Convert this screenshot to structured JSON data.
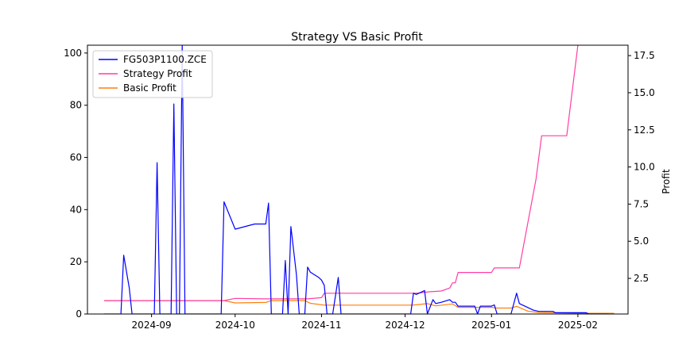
{
  "chart_data": {
    "type": "line",
    "title": "Strategy VS Basic Profit",
    "xlabel": "",
    "ylabel_left": "",
    "ylabel_right": "Profit",
    "x_ticks": [
      "2024-09",
      "2024-10",
      "2024-11",
      "2024-12",
      "2025-01",
      "2025-02"
    ],
    "x_range": [
      "2024-08-09",
      "2025-02-19"
    ],
    "y_left_ticks": [
      0,
      20,
      40,
      60,
      80,
      100
    ],
    "y_left_range": [
      0,
      103
    ],
    "y_right_ticks": [
      2.5,
      5.0,
      7.5,
      10.0,
      12.5,
      15.0,
      17.5
    ],
    "y_right_tick_labels": [
      "2.5",
      "5.0",
      "7.5",
      "10.0",
      "12.5",
      "15.0",
      "17.5"
    ],
    "y_right_range": [
      0.1,
      18.2
    ],
    "legend_position": "upper-left",
    "grid": false,
    "series": [
      {
        "name": "FG503P1100.ZCE",
        "axis": "left",
        "color": "#0000ff",
        "points": [
          [
            "2024-08-15",
            0
          ],
          [
            "2024-08-21",
            0
          ],
          [
            "2024-08-22",
            22.5
          ],
          [
            "2024-08-24",
            10
          ],
          [
            "2024-08-25",
            0
          ],
          [
            "2024-09-02",
            0
          ],
          [
            "2024-09-03",
            58
          ],
          [
            "2024-09-04",
            0
          ],
          [
            "2024-09-08",
            0
          ],
          [
            "2024-09-09",
            80.5
          ],
          [
            "2024-09-10",
            0
          ],
          [
            "2024-09-11",
            0
          ],
          [
            "2024-09-12",
            103
          ],
          [
            "2024-09-13",
            0
          ],
          [
            "2024-09-26",
            0
          ],
          [
            "2024-09-27",
            43
          ],
          [
            "2024-10-01",
            32.5
          ],
          [
            "2024-10-08",
            34.5
          ],
          [
            "2024-10-12",
            34.5
          ],
          [
            "2024-10-13",
            42.5
          ],
          [
            "2024-10-14",
            0
          ],
          [
            "2024-10-18",
            0
          ],
          [
            "2024-10-19",
            20.5
          ],
          [
            "2024-10-20",
            0
          ],
          [
            "2024-10-21",
            33.5
          ],
          [
            "2024-10-23",
            15
          ],
          [
            "2024-10-24",
            0
          ],
          [
            "2024-10-26",
            0
          ],
          [
            "2024-10-27",
            18
          ],
          [
            "2024-10-28",
            16
          ],
          [
            "2024-10-31",
            14
          ],
          [
            "2024-11-01",
            13
          ],
          [
            "2024-11-02",
            11
          ],
          [
            "2024-11-03",
            0
          ],
          [
            "2024-11-05",
            0
          ],
          [
            "2024-11-07",
            14
          ],
          [
            "2024-11-08",
            0
          ],
          [
            "2024-12-03",
            0
          ],
          [
            "2024-12-04",
            8
          ],
          [
            "2024-12-05",
            7.5
          ],
          [
            "2024-12-08",
            9
          ],
          [
            "2024-12-09",
            0
          ],
          [
            "2024-12-11",
            5.5
          ],
          [
            "2024-12-12",
            4
          ],
          [
            "2024-12-14",
            4.5
          ],
          [
            "2024-12-17",
            5.5
          ],
          [
            "2024-12-18",
            4.5
          ],
          [
            "2024-12-19",
            4.5
          ],
          [
            "2024-12-20",
            3
          ],
          [
            "2024-12-26",
            3
          ],
          [
            "2024-12-27",
            0
          ],
          [
            "2024-12-28",
            3
          ],
          [
            "2025-01-01",
            3
          ],
          [
            "2025-01-02",
            3.5
          ],
          [
            "2025-01-03",
            0
          ],
          [
            "2025-01-08",
            0
          ],
          [
            "2025-01-10",
            8
          ],
          [
            "2025-01-11",
            4
          ],
          [
            "2025-01-15",
            2
          ],
          [
            "2025-01-16",
            1.5
          ],
          [
            "2025-01-18",
            1
          ],
          [
            "2025-01-23",
            1
          ],
          [
            "2025-01-24",
            0.5
          ],
          [
            "2025-02-04",
            0.5
          ],
          [
            "2025-02-05",
            0
          ],
          [
            "2025-02-12",
            0
          ]
        ]
      },
      {
        "name": "Strategy Profit",
        "axis": "right",
        "color": "#ff3fa4",
        "points": [
          [
            "2024-08-15",
            1.0
          ],
          [
            "2024-09-27",
            1.0
          ],
          [
            "2024-10-01",
            1.15
          ],
          [
            "2024-10-11",
            1.12
          ],
          [
            "2024-10-27",
            1.12
          ],
          [
            "2024-11-01",
            1.2
          ],
          [
            "2024-11-02",
            1.5
          ],
          [
            "2024-12-05",
            1.5
          ],
          [
            "2024-12-10",
            1.6
          ],
          [
            "2024-12-14",
            1.65
          ],
          [
            "2024-12-17",
            1.85
          ],
          [
            "2024-12-18",
            2.2
          ],
          [
            "2024-12-19",
            2.2
          ],
          [
            "2024-12-20",
            2.9
          ],
          [
            "2025-01-01",
            2.9
          ],
          [
            "2025-01-02",
            3.2
          ],
          [
            "2025-01-11",
            3.2
          ],
          [
            "2025-01-13",
            5.2
          ],
          [
            "2025-01-17",
            9.2
          ],
          [
            "2025-01-19",
            12.1
          ],
          [
            "2025-01-28",
            12.1
          ],
          [
            "2025-02-01",
            18.2
          ]
        ]
      },
      {
        "name": "Basic Profit",
        "axis": "right",
        "color": "#ff7f0e",
        "points": [
          [
            "2024-08-15",
            1.0
          ],
          [
            "2024-09-27",
            1.0
          ],
          [
            "2024-10-01",
            0.85
          ],
          [
            "2024-10-12",
            0.88
          ],
          [
            "2024-10-14",
            1.0
          ],
          [
            "2024-10-26",
            1.0
          ],
          [
            "2024-10-28",
            0.82
          ],
          [
            "2024-11-02",
            0.7
          ],
          [
            "2024-12-03",
            0.7
          ],
          [
            "2024-12-05",
            0.72
          ],
          [
            "2024-12-09",
            0.8
          ],
          [
            "2024-12-12",
            0.65
          ],
          [
            "2024-12-18",
            0.78
          ],
          [
            "2024-12-20",
            0.55
          ],
          [
            "2025-01-01",
            0.55
          ],
          [
            "2025-01-03",
            0.5
          ],
          [
            "2025-01-08",
            0.5
          ],
          [
            "2025-01-10",
            0.62
          ],
          [
            "2025-01-14",
            0.3
          ],
          [
            "2025-01-18",
            0.2
          ],
          [
            "2025-02-04",
            0.15
          ],
          [
            "2025-02-14",
            0.15
          ]
        ]
      }
    ]
  }
}
